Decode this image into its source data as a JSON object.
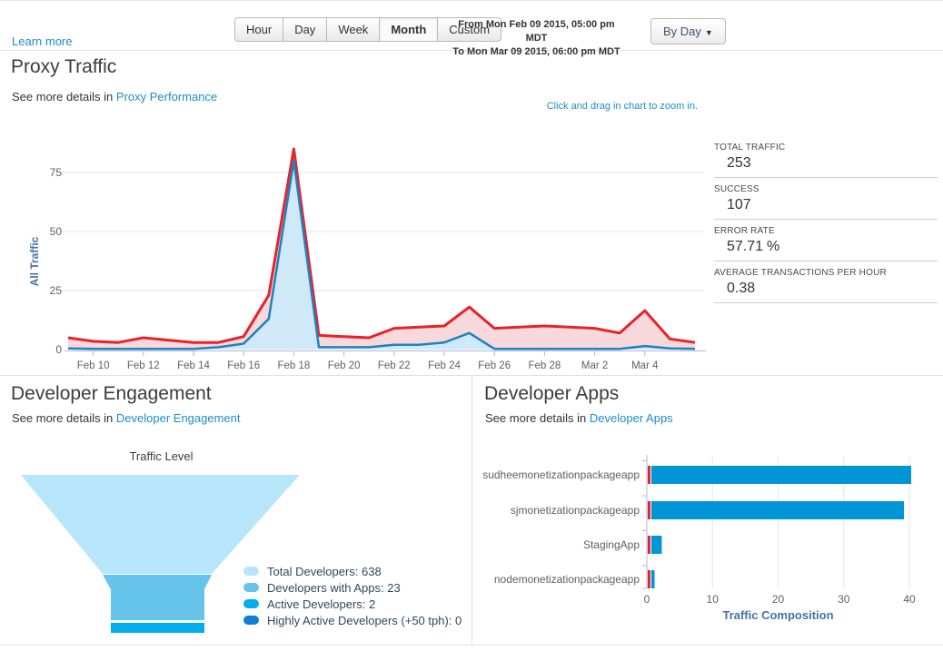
{
  "topbar": {
    "learn_more": "Learn more",
    "range_buttons": [
      {
        "label": "Hour",
        "active": false
      },
      {
        "label": "Day",
        "active": false
      },
      {
        "label": "Week",
        "active": false
      },
      {
        "label": "Month",
        "active": true
      },
      {
        "label": "Custom",
        "active": false
      }
    ],
    "from_line": "From Mon Feb 09 2015, 05:00 pm MDT",
    "to_line": "To Mon Mar 09 2015, 06:00 pm MDT",
    "group_by_label": "By Day",
    "caret": "▼"
  },
  "proxy_traffic": {
    "title": "Proxy Traffic",
    "subtitle_prefix": "See more details in ",
    "subtitle_link": "Proxy Performance",
    "zoom_hint": "Click and drag in chart to zoom in.",
    "stats": [
      {
        "label": "TOTAL TRAFFIC",
        "value": "253"
      },
      {
        "label": "SUCCESS",
        "value": "107"
      },
      {
        "label": "ERROR RATE",
        "value": "57.71",
        "unit": "%"
      },
      {
        "label": "AVERAGE TRANSACTIONS PER HOUR",
        "value": "0.38"
      }
    ]
  },
  "developer_engagement": {
    "title": "Developer Engagement",
    "subtitle_prefix": "See more details in ",
    "subtitle_link": "Developer Engagement"
  },
  "developer_apps": {
    "title": "Developer Apps",
    "subtitle_prefix": "See more details in ",
    "subtitle_link": "Developer Apps"
  },
  "chart_data": [
    {
      "id": "proxy-traffic",
      "type": "area",
      "ylabel": "All Traffic",
      "yticks": [
        0,
        25,
        50,
        75
      ],
      "ylim": [
        0,
        88
      ],
      "grid": true,
      "x": [
        "Feb 9",
        "Feb 10",
        "Feb 11",
        "Feb 12",
        "Feb 13",
        "Feb 14",
        "Feb 15",
        "Feb 16",
        "Feb 17",
        "Feb 18",
        "Feb 19",
        "Feb 20",
        "Feb 21",
        "Feb 22",
        "Feb 23",
        "Feb 24",
        "Feb 25",
        "Feb 26",
        "Feb 27",
        "Feb 28",
        "Mar 1",
        "Mar 2",
        "Mar 3",
        "Mar 4",
        "Mar 5",
        "Mar 6"
      ],
      "x_tick_indices": [
        1,
        3,
        5,
        7,
        9,
        11,
        13,
        15,
        17,
        19,
        21,
        23
      ],
      "series": [
        {
          "name": "Total Traffic",
          "color": "#e8222a",
          "fill": "#f8d9db",
          "values": [
            5,
            3.5,
            3,
            5,
            4,
            3,
            3,
            5.5,
            23,
            85,
            6,
            5.5,
            5,
            9,
            9.5,
            10,
            18,
            9,
            9.5,
            10,
            9.5,
            9,
            7,
            16.5,
            4.5,
            3
          ]
        },
        {
          "name": "Success",
          "color": "#1f82c0",
          "fill": "#cfe9f8",
          "values": [
            0.5,
            0.3,
            0.3,
            0.3,
            0.3,
            0.3,
            1,
            2.5,
            13,
            80,
            1,
            1,
            1,
            2,
            2,
            3,
            7,
            0.3,
            0.3,
            0.3,
            0.3,
            0.3,
            0.3,
            1.5,
            0.5,
            0.3
          ]
        }
      ]
    },
    {
      "id": "developer-engagement-funnel",
      "type": "funnel",
      "title": "Traffic Level",
      "steps": [
        {
          "label": "Total Developers",
          "value": 638,
          "legend_text": "Total Developers: 638",
          "color": "#b7e6fa"
        },
        {
          "label": "Developers with Apps",
          "value": 23,
          "legend_text": "Developers with Apps: 23",
          "color": "#66c3e9"
        },
        {
          "label": "Active Developers",
          "value": 2,
          "legend_text": "Active Developers: 2",
          "color": "#00aeef"
        },
        {
          "label": "Highly Active Developers (+50 tph)",
          "value": 0,
          "legend_text": "Highly Active Developers (+50 tph): 0",
          "color": "#0f7fd4"
        }
      ]
    },
    {
      "id": "developer-apps",
      "type": "bar",
      "categories": [
        "sudheemonetizationpackageapp",
        "sjmonetizationpackageapp",
        "StagingApp",
        "nodemonetizationpackageapp"
      ],
      "series": [
        {
          "name": "error",
          "color": "#e8222a",
          "values": [
            0.4,
            0.4,
            0.4,
            0.4
          ]
        },
        {
          "name": "traffic",
          "color": "#0095d6",
          "values": [
            39.6,
            38.5,
            1.6,
            0.5
          ]
        }
      ],
      "xlabel": "Traffic Composition",
      "xticks": [
        0,
        10,
        20,
        30,
        40
      ],
      "xlim": [
        0,
        44
      ],
      "grid": true
    }
  ]
}
